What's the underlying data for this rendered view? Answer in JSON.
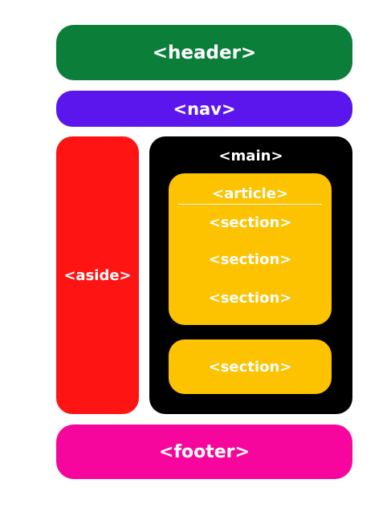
{
  "colors": {
    "header": "#0b7f3a",
    "nav": "#5b16ee",
    "aside": "#ff1414",
    "main": "#000000",
    "article": "#fdc200",
    "section": "#fdc200",
    "footer": "#f6069d",
    "text": "#ffffff"
  },
  "header": {
    "label": "<header>"
  },
  "nav": {
    "label": "<nav>"
  },
  "aside": {
    "label": "<aside>"
  },
  "main": {
    "label": "<main>",
    "article": {
      "label": "<article>",
      "sections": [
        {
          "label": "<section>"
        },
        {
          "label": "<section>"
        },
        {
          "label": "<section>"
        }
      ]
    },
    "section": {
      "label": "<section>"
    }
  },
  "footer": {
    "label": "<footer>"
  }
}
